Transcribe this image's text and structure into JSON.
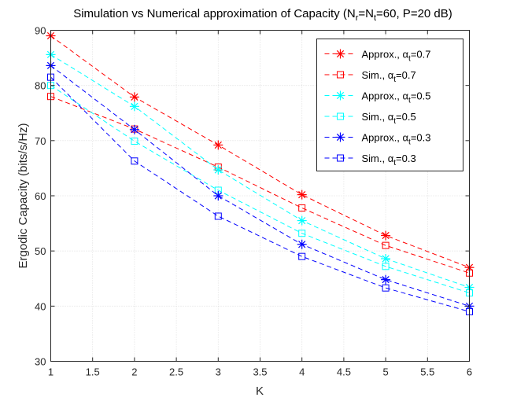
{
  "chart_data": {
    "type": "line",
    "title_parts": {
      "prefix": "Simulation vs Numerical approximation of Capacity (N",
      "sub1": "r",
      "mid": "=N",
      "sub2": "t",
      "suffix": "=60, P=20 dB)"
    },
    "xlabel": "K",
    "ylabel": "Ergodic Capacity (bits/s/Hz)",
    "xlim": [
      1,
      6
    ],
    "ylim": [
      30,
      90
    ],
    "xticks": [
      "1",
      "1.5",
      "2",
      "2.5",
      "3",
      "3.5",
      "4",
      "4.5",
      "5",
      "5.5",
      "6"
    ],
    "yticks": [
      "30",
      "40",
      "50",
      "60",
      "70",
      "80",
      "90"
    ],
    "grid": true,
    "legend_position": "top-right",
    "x": [
      1,
      2,
      3,
      4,
      5,
      6
    ],
    "series": [
      {
        "prefix": "Approx., ",
        "sym": "α",
        "sub": "t",
        "suffix": "=0.7",
        "color": "#ff0000",
        "marker": "asterisk",
        "values": [
          89.0,
          77.9,
          69.2,
          60.2,
          52.8,
          47.0
        ]
      },
      {
        "prefix": "Sim., ",
        "sym": "α",
        "sub": "t",
        "suffix": "=0.7",
        "color": "#ff0000",
        "marker": "square",
        "values": [
          78.0,
          72.1,
          65.2,
          57.8,
          51.0,
          46.0
        ]
      },
      {
        "prefix": "Approx., ",
        "sym": "α",
        "sub": "t",
        "suffix": "=0.5",
        "color": "#00ffff",
        "marker": "asterisk",
        "values": [
          85.6,
          76.2,
          64.7,
          55.5,
          48.6,
          43.4
        ]
      },
      {
        "prefix": "Sim., ",
        "sym": "α",
        "sub": "t",
        "suffix": "=0.5",
        "color": "#00ffff",
        "marker": "square",
        "values": [
          80.0,
          69.9,
          61.0,
          53.2,
          47.2,
          42.4
        ]
      },
      {
        "prefix": "Approx., ",
        "sym": "α",
        "sub": "t",
        "suffix": "=0.3",
        "color": "#0000ff",
        "marker": "asterisk",
        "values": [
          83.6,
          72.0,
          60.0,
          51.2,
          44.8,
          40.0
        ]
      },
      {
        "prefix": "Sim., ",
        "sym": "α",
        "sub": "t",
        "suffix": "=0.3",
        "color": "#0000ff",
        "marker": "square",
        "values": [
          81.5,
          66.3,
          56.3,
          49.0,
          43.3,
          39.0
        ]
      }
    ]
  }
}
